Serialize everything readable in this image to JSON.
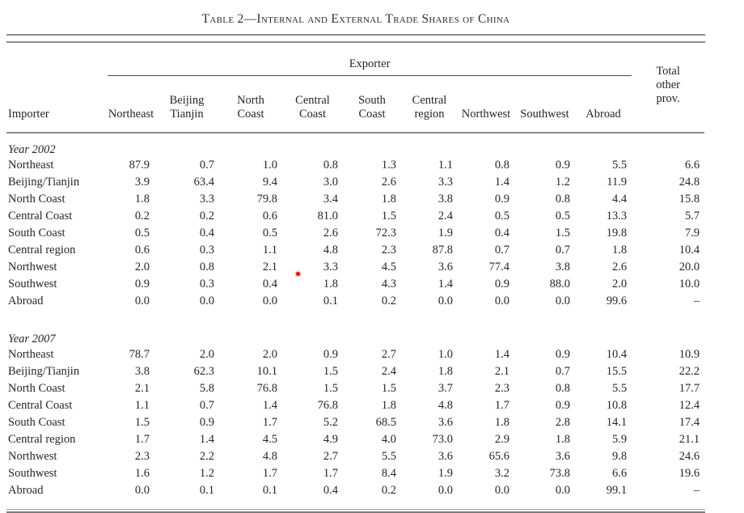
{
  "title": "Table 2—Internal and External Trade Shares of China",
  "header": {
    "exporter_label": "Exporter",
    "importer_label": "Importer",
    "columns": [
      "Northeast",
      "Beijing\nTianjin",
      "North\nCoast",
      "Central\nCoast",
      "South\nCoast",
      "Central\nregion",
      "Northwest",
      "Southwest",
      "Abroad"
    ],
    "total_label": "Total\nother\nprov."
  },
  "marker": {
    "name": "red-dot-annotation",
    "color": "#e8100c"
  },
  "chart_data": {
    "type": "table",
    "title": "Table 2—Internal and External Trade Shares of China",
    "column_group_label": "Exporter",
    "row_axis_label": "Importer",
    "exporter_columns": [
      "Northeast",
      "Beijing Tianjin",
      "North Coast",
      "Central Coast",
      "South Coast",
      "Central region",
      "Northwest",
      "Southwest",
      "Abroad",
      "Total other prov."
    ],
    "sections": [
      {
        "label": "Year 2002",
        "rows": [
          {
            "importer": "Northeast",
            "values": [
              "87.9",
              "0.7",
              "1.0",
              "0.8",
              "1.3",
              "1.1",
              "0.8",
              "0.9",
              "5.5",
              "6.6"
            ]
          },
          {
            "importer": "Beijing/Tianjin",
            "values": [
              "3.9",
              "63.4",
              "9.4",
              "3.0",
              "2.6",
              "3.3",
              "1.4",
              "1.2",
              "11.9",
              "24.8"
            ]
          },
          {
            "importer": "North Coast",
            "values": [
              "1.8",
              "3.3",
              "79.8",
              "3.4",
              "1.8",
              "3.8",
              "0.9",
              "0.8",
              "4.4",
              "15.8"
            ]
          },
          {
            "importer": "Central Coast",
            "values": [
              "0.2",
              "0.2",
              "0.6",
              "81.0",
              "1.5",
              "2.4",
              "0.5",
              "0.5",
              "13.3",
              "5.7"
            ]
          },
          {
            "importer": "South Coast",
            "values": [
              "0.5",
              "0.4",
              "0.5",
              "2.6",
              "72.3",
              "1.9",
              "0.4",
              "1.5",
              "19.8",
              "7.9"
            ]
          },
          {
            "importer": "Central region",
            "values": [
              "0.6",
              "0.3",
              "1.1",
              "4.8",
              "2.3",
              "87.8",
              "0.7",
              "0.7",
              "1.8",
              "10.4"
            ]
          },
          {
            "importer": "Northwest",
            "values": [
              "2.0",
              "0.8",
              "2.1",
              "3.3",
              "4.5",
              "3.6",
              "77.4",
              "3.8",
              "2.6",
              "20.0"
            ]
          },
          {
            "importer": "Southwest",
            "values": [
              "0.9",
              "0.3",
              "0.4",
              "1.8",
              "4.3",
              "1.4",
              "0.9",
              "88.0",
              "2.0",
              "10.0"
            ]
          },
          {
            "importer": "Abroad",
            "values": [
              "0.0",
              "0.0",
              "0.0",
              "0.1",
              "0.2",
              "0.0",
              "0.0",
              "0.0",
              "99.6",
              "–"
            ]
          }
        ]
      },
      {
        "label": "Year 2007",
        "rows": [
          {
            "importer": "Northeast",
            "values": [
              "78.7",
              "2.0",
              "2.0",
              "0.9",
              "2.7",
              "1.0",
              "1.4",
              "0.9",
              "10.4",
              "10.9"
            ]
          },
          {
            "importer": "Beijing/Tianjin",
            "values": [
              "3.8",
              "62.3",
              "10.1",
              "1.5",
              "2.4",
              "1.8",
              "2.1",
              "0.7",
              "15.5",
              "22.2"
            ]
          },
          {
            "importer": "North Coast",
            "values": [
              "2.1",
              "5.8",
              "76.8",
              "1.5",
              "1.5",
              "3.7",
              "2.3",
              "0.8",
              "5.5",
              "17.7"
            ]
          },
          {
            "importer": "Central Coast",
            "values": [
              "1.1",
              "0.7",
              "1.4",
              "76.8",
              "1.8",
              "4.8",
              "1.7",
              "0.9",
              "10.8",
              "12.4"
            ]
          },
          {
            "importer": "South Coast",
            "values": [
              "1.5",
              "0.9",
              "1.7",
              "5.2",
              "68.5",
              "3.6",
              "1.8",
              "2.8",
              "14.1",
              "17.4"
            ]
          },
          {
            "importer": "Central region",
            "values": [
              "1.7",
              "1.4",
              "4.5",
              "4.9",
              "4.0",
              "73.0",
              "2.9",
              "1.8",
              "5.9",
              "21.1"
            ]
          },
          {
            "importer": "Northwest",
            "values": [
              "2.3",
              "2.2",
              "4.8",
              "2.7",
              "5.5",
              "3.6",
              "65.6",
              "3.6",
              "9.8",
              "24.6"
            ]
          },
          {
            "importer": "Southwest",
            "values": [
              "1.6",
              "1.2",
              "1.7",
              "1.7",
              "8.4",
              "1.9",
              "3.2",
              "73.8",
              "6.6",
              "19.6"
            ]
          },
          {
            "importer": "Abroad",
            "values": [
              "0.0",
              "0.1",
              "0.1",
              "0.4",
              "0.2",
              "0.0",
              "0.0",
              "0.0",
              "99.1",
              "–"
            ]
          }
        ]
      }
    ]
  }
}
